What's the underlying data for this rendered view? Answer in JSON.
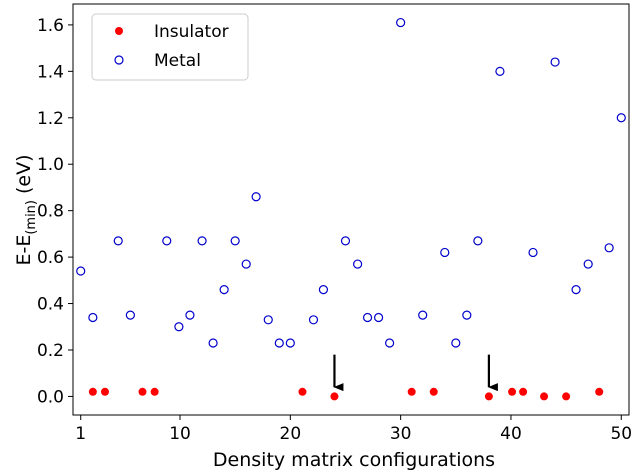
{
  "chart_data": {
    "type": "scatter",
    "xlabel": "Density matrix configurations",
    "ylabel_main": "E-E",
    "ylabel_sub": "(min)",
    "ylabel_unit": " (eV)",
    "xlim": [
      0.3,
      50.7
    ],
    "ylim": [
      -0.08,
      1.69
    ],
    "xticks": [
      1,
      10,
      20,
      30,
      40,
      50
    ],
    "yticks": [
      0.0,
      0.2,
      0.4,
      0.6,
      0.8,
      1.0,
      1.2,
      1.4,
      1.6
    ],
    "ytick_labels": [
      "0.0",
      "0.2",
      "0.4",
      "0.6",
      "0.8",
      "1.0",
      "1.2",
      "1.4",
      "1.6"
    ],
    "legend_position": "top-left",
    "series": [
      {
        "name": "Insulator",
        "marker": "filled-circle",
        "color": "#ff0000",
        "points": [
          [
            2.1,
            0.02
          ],
          [
            3.2,
            0.02
          ],
          [
            6.6,
            0.02
          ],
          [
            7.7,
            0.02
          ],
          [
            21.1,
            0.02
          ],
          [
            24.0,
            0.0
          ],
          [
            31.0,
            0.02
          ],
          [
            33.0,
            0.02
          ],
          [
            38.0,
            0.0
          ],
          [
            40.1,
            0.02
          ],
          [
            41.1,
            0.02
          ],
          [
            43.0,
            0.0
          ],
          [
            45.0,
            0.0
          ],
          [
            48.0,
            0.02
          ]
        ]
      },
      {
        "name": "Metal",
        "marker": "open-circle",
        "color": "#0000cc",
        "points": [
          [
            1,
            0.54
          ],
          [
            2.1,
            0.34
          ],
          [
            4.4,
            0.67
          ],
          [
            5.5,
            0.35
          ],
          [
            8.8,
            0.67
          ],
          [
            9.9,
            0.3
          ],
          [
            10.9,
            0.35
          ],
          [
            12.0,
            0.67
          ],
          [
            13.0,
            0.23
          ],
          [
            14.0,
            0.46
          ],
          [
            15.0,
            0.67
          ],
          [
            16.0,
            0.57
          ],
          [
            16.9,
            0.86
          ],
          [
            18.0,
            0.33
          ],
          [
            19.0,
            0.23
          ],
          [
            20.0,
            0.23
          ],
          [
            22.1,
            0.33
          ],
          [
            23.0,
            0.46
          ],
          [
            25.0,
            0.67
          ],
          [
            26.1,
            0.57
          ],
          [
            27.0,
            0.34
          ],
          [
            28.0,
            0.34
          ],
          [
            29.0,
            0.23
          ],
          [
            30.0,
            1.61
          ],
          [
            32.0,
            0.35
          ],
          [
            34.0,
            0.62
          ],
          [
            35.0,
            0.23
          ],
          [
            36.0,
            0.35
          ],
          [
            37.0,
            0.67
          ],
          [
            39.0,
            1.4
          ],
          [
            42.0,
            0.62
          ],
          [
            44.0,
            1.44
          ],
          [
            45.9,
            0.46
          ],
          [
            47.0,
            0.57
          ],
          [
            48.9,
            0.64
          ],
          [
            50.0,
            1.2
          ]
        ]
      }
    ],
    "annotations": [
      {
        "type": "arrow",
        "x": 24.0,
        "y_from": 0.18,
        "y_to": 0.04
      },
      {
        "type": "arrow",
        "x": 38.0,
        "y_from": 0.18,
        "y_to": 0.04
      }
    ]
  }
}
